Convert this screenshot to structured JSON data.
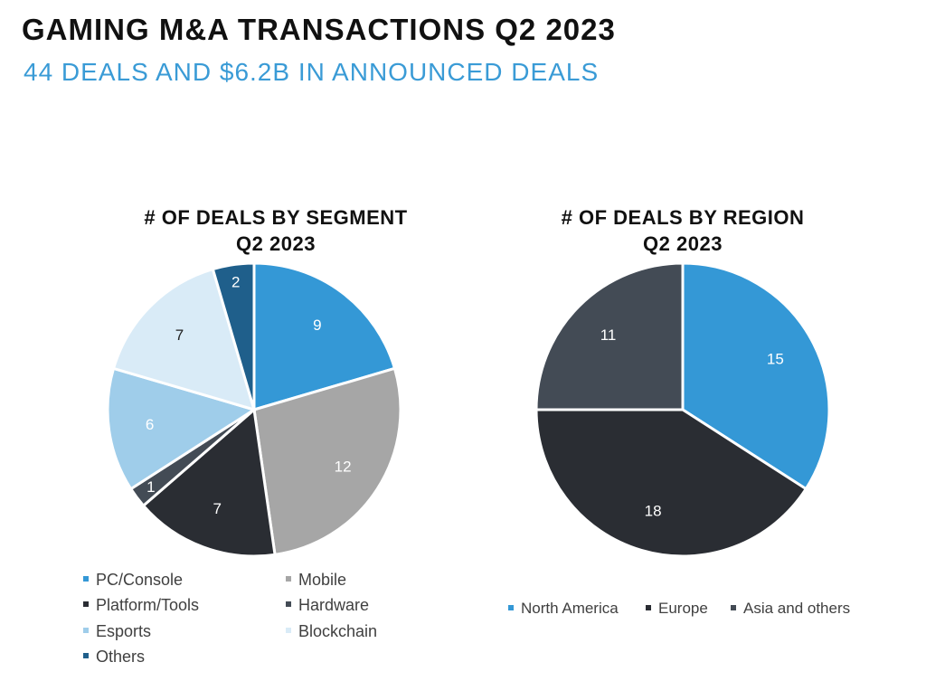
{
  "header": {
    "title": "GAMING M&A TRANSACTIONS Q2 2023",
    "subtitle": "44 DEALS AND $6.2B IN ANNOUNCED DEALS"
  },
  "chart_data": [
    {
      "type": "pie",
      "title_line1": "# OF DEALS BY SEGMENT",
      "title_line2": "Q2 2023",
      "categories": [
        "PC/Console",
        "Mobile",
        "Platform/Tools",
        "Hardware",
        "Esports",
        "Blockchain",
        "Others"
      ],
      "values": [
        9,
        12,
        7,
        1,
        6,
        7,
        2
      ],
      "colors": [
        "#3498d6",
        "#a6a6a6",
        "#2a2d33",
        "#434b55",
        "#9fcdea",
        "#d9ebf7",
        "#1f5f8b"
      ],
      "label_colors": [
        "#ffffff",
        "#ffffff",
        "#ffffff",
        "#ffffff",
        "#ffffff",
        "#222222",
        "#ffffff"
      ],
      "legend_placement": "bottom"
    },
    {
      "type": "pie",
      "title_line1": "# OF DEALS BY REGION",
      "title_line2": "Q2 2023",
      "categories": [
        "North America",
        "Europe",
        "Asia and others"
      ],
      "values": [
        15,
        18,
        11
      ],
      "colors": [
        "#3498d6",
        "#2a2d33",
        "#434b55"
      ],
      "label_colors": [
        "#ffffff",
        "#ffffff",
        "#ffffff"
      ],
      "legend_placement": "bottom"
    }
  ]
}
